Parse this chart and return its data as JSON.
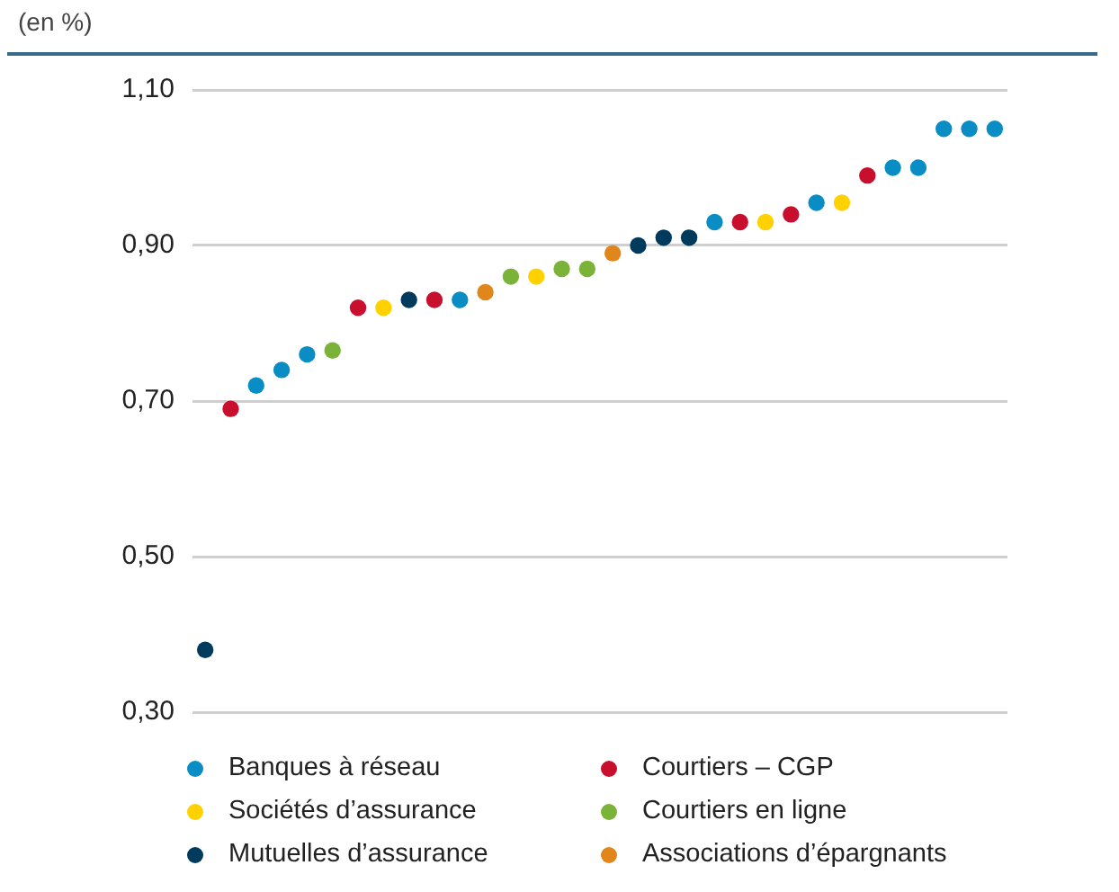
{
  "chart_data": {
    "type": "scatter",
    "ylabel": "(en %)",
    "categories": [
      null,
      null,
      null,
      null,
      null,
      null,
      null,
      null,
      null,
      null,
      null,
      null,
      null,
      null,
      null,
      null,
      null,
      null,
      null,
      null,
      null,
      null,
      null,
      null,
      null,
      null,
      null,
      null,
      null,
      null,
      null,
      null
    ],
    "ylim": [
      0.3,
      1.1
    ],
    "yticks": [
      {
        "value": 0.3,
        "label": "0,30"
      },
      {
        "value": 0.5,
        "label": "0,50"
      },
      {
        "value": 0.7,
        "label": "0,70"
      },
      {
        "value": 0.9,
        "label": "0,90"
      },
      {
        "value": 1.1,
        "label": "1,10"
      }
    ],
    "grid": "y",
    "legend": "bottom",
    "marker": "circle",
    "series": [
      {
        "name": "Banques à réseau",
        "color": "#0a8cc4",
        "values": [
          null,
          null,
          0.72,
          0.74,
          0.76,
          null,
          null,
          null,
          null,
          null,
          0.83,
          null,
          null,
          null,
          null,
          null,
          null,
          null,
          null,
          null,
          0.93,
          null,
          null,
          null,
          0.955,
          null,
          null,
          1.0,
          1.0,
          1.05,
          1.05,
          1.05
        ]
      },
      {
        "name": "Sociétés d’assurance",
        "color": "#ffd100",
        "values": [
          null,
          null,
          null,
          null,
          null,
          null,
          null,
          0.82,
          null,
          null,
          null,
          null,
          null,
          0.86,
          null,
          null,
          null,
          null,
          null,
          null,
          null,
          null,
          0.93,
          null,
          null,
          0.955,
          null,
          null,
          null,
          null,
          null,
          null
        ]
      },
      {
        "name": "Mutuelles d’assurance",
        "color": "#003a5d",
        "values": [
          0.38,
          null,
          null,
          null,
          null,
          null,
          null,
          null,
          0.83,
          null,
          null,
          null,
          null,
          null,
          null,
          null,
          null,
          0.9,
          0.91,
          0.91,
          null,
          null,
          null,
          null,
          null,
          null,
          null,
          null,
          null,
          null,
          null,
          null
        ]
      },
      {
        "name": "Courtiers – CGP",
        "color": "#c8102e",
        "values": [
          null,
          0.69,
          null,
          null,
          null,
          null,
          0.82,
          null,
          null,
          0.83,
          null,
          null,
          null,
          null,
          null,
          null,
          null,
          null,
          null,
          null,
          null,
          0.93,
          null,
          0.94,
          null,
          null,
          0.99,
          null,
          null,
          null,
          null,
          null
        ]
      },
      {
        "name": "Courtiers en ligne",
        "color": "#7ab338",
        "values": [
          null,
          null,
          null,
          null,
          null,
          0.765,
          null,
          null,
          null,
          null,
          null,
          null,
          0.86,
          null,
          0.87,
          0.87,
          null,
          null,
          null,
          null,
          null,
          null,
          null,
          null,
          null,
          null,
          null,
          null,
          null,
          null,
          null,
          null
        ]
      },
      {
        "name": "Associations d’épargnants",
        "color": "#e0861a",
        "values": [
          null,
          null,
          null,
          null,
          null,
          null,
          null,
          null,
          null,
          null,
          null,
          0.84,
          null,
          null,
          null,
          null,
          0.89,
          null,
          null,
          null,
          null,
          null,
          null,
          null,
          null,
          null,
          null,
          null,
          null,
          null,
          null,
          null
        ]
      }
    ]
  }
}
